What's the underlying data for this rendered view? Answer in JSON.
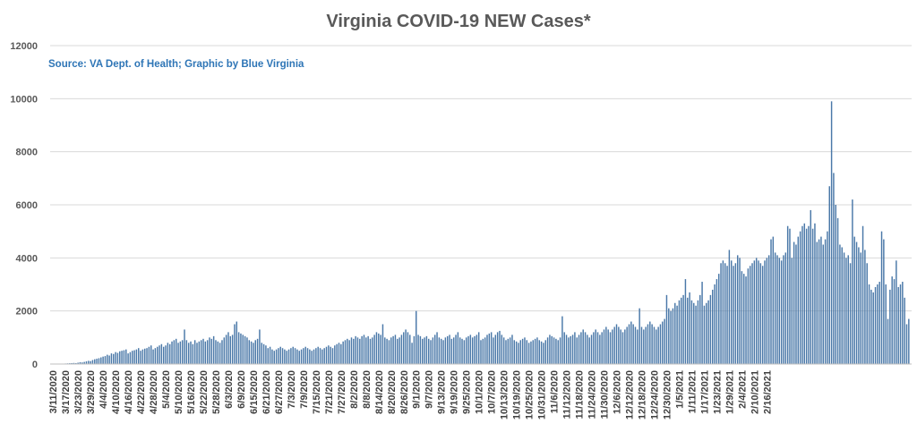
{
  "chart_data": {
    "type": "bar",
    "title": "Virginia COVID-19 NEW Cases*",
    "subtitle": "Source: VA Dept. of Health; Graphic by Blue Virginia",
    "xlabel": "",
    "ylabel": "",
    "ylim": [
      0,
      12000
    ],
    "yticks": [
      0,
      2000,
      4000,
      6000,
      8000,
      10000,
      12000
    ],
    "grid": true,
    "legend": "none",
    "bar_color": "#4a78a8",
    "gridline_color": "#d9d9d9",
    "title_color": "#595959",
    "subtitle_color": "#2e75b6",
    "x_tick_labels": [
      "3/11/2020",
      "3/17/2020",
      "3/23/2020",
      "3/29/2020",
      "4/4/2020",
      "4/10/2020",
      "4/16/2020",
      "4/22/2020",
      "4/28/2020",
      "5/4/2020",
      "5/10/2020",
      "5/16/2020",
      "5/22/2020",
      "5/28/2020",
      "6/3/2020",
      "6/9/2020",
      "6/15/2020",
      "6/21/2020",
      "6/27/2020",
      "7/3/2020",
      "7/9/2020",
      "7/15/2020",
      "7/21/2020",
      "7/27/2020",
      "8/2/2020",
      "8/8/2020",
      "8/14/2020",
      "8/20/2020",
      "8/26/2020",
      "9/1/2020",
      "9/7/2020",
      "9/13/2020",
      "9/19/2020",
      "9/25/2020",
      "10/1/2020",
      "10/7/2020",
      "10/13/2020",
      "10/19/2020",
      "10/25/2020",
      "10/31/2020",
      "11/6/2020",
      "11/12/2020",
      "11/18/2020",
      "11/24/2020",
      "11/30/2020",
      "12/6/2020",
      "12/12/2020",
      "12/18/2020",
      "12/24/2020",
      "12/30/2020",
      "1/5/2021",
      "1/11/2021",
      "1/17/2021",
      "1/23/2021",
      "1/29/2021",
      "2/4/2021",
      "2/10/2021",
      "2/16/2021"
    ],
    "tick_every_days": 6,
    "series": [
      {
        "values": [
          2,
          3,
          5,
          10,
          8,
          15,
          20,
          25,
          30,
          35,
          40,
          35,
          50,
          70,
          60,
          80,
          100,
          120,
          110,
          150,
          180,
          200,
          220,
          250,
          280,
          300,
          350,
          320,
          400,
          380,
          450,
          420,
          480,
          500,
          520,
          550,
          400,
          450,
          500,
          520,
          550,
          600,
          500,
          550,
          580,
          600,
          650,
          700,
          550,
          600,
          650,
          700,
          750,
          650,
          700,
          800,
          750,
          850,
          900,
          950,
          800,
          850,
          900,
          1300,
          900,
          800,
          850,
          750,
          900,
          800,
          850,
          900,
          950,
          850,
          900,
          1000,
          950,
          1050,
          900,
          850,
          800,
          900,
          1000,
          1100,
          1200,
          1050,
          1100,
          1500,
          1600,
          1200,
          1150,
          1100,
          1050,
          1000,
          900,
          850,
          800,
          900,
          950,
          1300,
          800,
          750,
          700,
          600,
          650,
          550,
          500,
          550,
          600,
          650,
          600,
          550,
          500,
          550,
          600,
          650,
          600,
          550,
          500,
          550,
          600,
          650,
          600,
          550,
          500,
          550,
          600,
          650,
          600,
          550,
          600,
          650,
          700,
          650,
          600,
          700,
          750,
          800,
          750,
          850,
          900,
          950,
          900,
          1000,
          950,
          1050,
          1000,
          950,
          1050,
          1100,
          1000,
          1050,
          950,
          1000,
          1100,
          1200,
          1150,
          1100,
          1500,
          1000,
          950,
          900,
          1000,
          1050,
          1100,
          950,
          1000,
          1100,
          1200,
          1300,
          1200,
          1100,
          800,
          1050,
          2000,
          1100,
          1050,
          950,
          1000,
          1050,
          950,
          900,
          1000,
          1100,
          1200,
          1000,
          950,
          900,
          1000,
          1050,
          1100,
          950,
          1000,
          1100,
          1200,
          1000,
          950,
          900,
          1000,
          1050,
          1100,
          1000,
          1050,
          1100,
          1200,
          900,
          950,
          1000,
          1100,
          1150,
          1200,
          1000,
          1100,
          1200,
          1250,
          1100,
          1000,
          900,
          950,
          1000,
          1100,
          900,
          850,
          800,
          900,
          950,
          1000,
          900,
          800,
          850,
          900,
          950,
          1000,
          900,
          850,
          800,
          900,
          1000,
          1100,
          1050,
          1000,
          950,
          900,
          1000,
          1800,
          1200,
          1100,
          1000,
          1050,
          1100,
          1200,
          1000,
          1100,
          1200,
          1300,
          1200,
          1100,
          1000,
          1100,
          1200,
          1300,
          1200,
          1100,
          1200,
          1300,
          1400,
          1300,
          1200,
          1300,
          1400,
          1500,
          1400,
          1300,
          1200,
          1300,
          1400,
          1500,
          1600,
          1500,
          1400,
          1300,
          2100,
          1400,
          1300,
          1400,
          1500,
          1600,
          1500,
          1400,
          1300,
          1400,
          1500,
          1600,
          1700,
          2600,
          2100,
          2000,
          2100,
          2300,
          2200,
          2400,
          2500,
          2600,
          3200,
          2500,
          2700,
          2400,
          2300,
          2200,
          2400,
          2600,
          3100,
          2200,
          2300,
          2400,
          2600,
          2800,
          3000,
          3200,
          3400,
          3800,
          3900,
          3800,
          3700,
          4300,
          3900,
          3700,
          3800,
          4100,
          4000,
          3500,
          3400,
          3300,
          3600,
          3700,
          3800,
          3900,
          4000,
          3900,
          3800,
          3700,
          3900,
          4000,
          4100,
          4700,
          4800,
          4200,
          4100,
          4000,
          3900,
          4100,
          4200,
          5200,
          5100,
          4000,
          4600,
          4500,
          4800,
          5000,
          5200,
          5300,
          5100,
          5200,
          5800,
          5100,
          5300,
          4600,
          4700,
          4800,
          4500,
          4700,
          5000,
          6700,
          9900,
          7200,
          6000,
          5500,
          4500,
          4400,
          4200,
          4000,
          4100,
          3800,
          6200,
          4800,
          4600,
          4400,
          4200,
          5200,
          4300,
          3800,
          3000,
          2800,
          2700,
          2900,
          3000,
          3100,
          5000,
          4700,
          3000,
          1700,
          2800,
          3300,
          3200,
          3900,
          2900,
          3000,
          3100,
          2500,
          1500,
          1700
        ]
      }
    ]
  }
}
